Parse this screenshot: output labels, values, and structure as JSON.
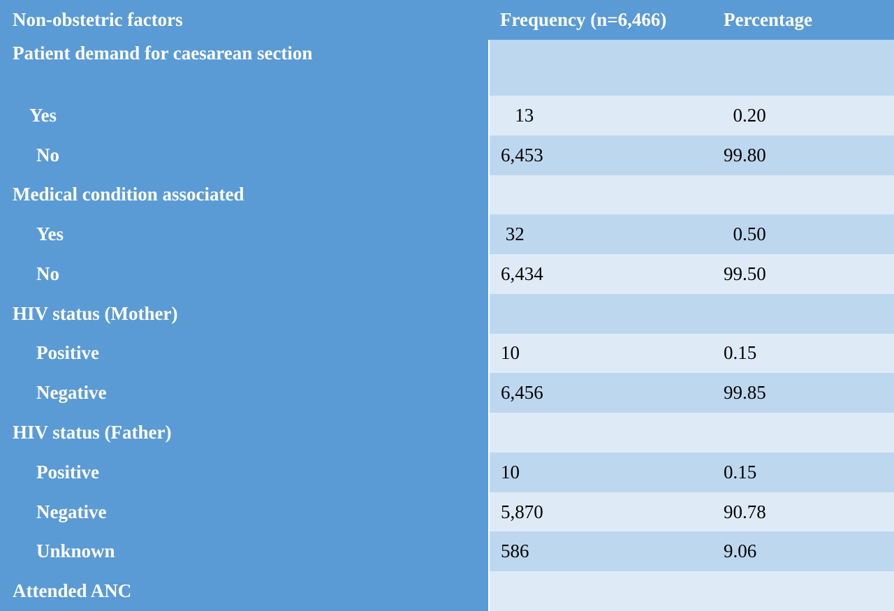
{
  "table": {
    "headers": {
      "factor": "Non-obstetric factors",
      "frequency": "Frequency (n=6,466)",
      "percentage": "Percentage"
    },
    "rows": [
      {
        "label": "Patient demand for caesarean section",
        "freq": "",
        "pct": "",
        "type": "group"
      },
      {
        "label": "Yes",
        "freq": "   13",
        "pct": "  0.20",
        "type": "item"
      },
      {
        "label": "No",
        "freq": "6,453",
        "pct": "99.80",
        "type": "item"
      },
      {
        "label": "Medical condition associated",
        "freq": "",
        "pct": "",
        "type": "group"
      },
      {
        "label": "Yes",
        "freq": " 32",
        "pct": "  0.50",
        "type": "item"
      },
      {
        "label": "No",
        "freq": "6,434",
        "pct": "99.50",
        "type": "item"
      },
      {
        "label": "HIV status (Mother)",
        "freq": "",
        "pct": "",
        "type": "group"
      },
      {
        "label": "Positive",
        "freq": "10",
        "pct": "0.15",
        "type": "item"
      },
      {
        "label": "Negative",
        "freq": "6,456",
        "pct": "99.85",
        "type": "item"
      },
      {
        "label": "HIV status (Father)",
        "freq": "",
        "pct": "",
        "type": "group"
      },
      {
        "label": "Positive",
        "freq": "10",
        "pct": "0.15",
        "type": "item"
      },
      {
        "label": "Negative",
        "freq": "5,870",
        "pct": "90.78",
        "type": "item"
      },
      {
        "label": "Unknown",
        "freq": "586",
        "pct": "9.06",
        "type": "item"
      },
      {
        "label": "Attended ANC",
        "freq": "",
        "pct": "",
        "type": "group"
      }
    ]
  },
  "colors": {
    "label_column": "#5b9bd5",
    "row_dark": "#bdd7ee",
    "row_light": "#deebf7"
  }
}
